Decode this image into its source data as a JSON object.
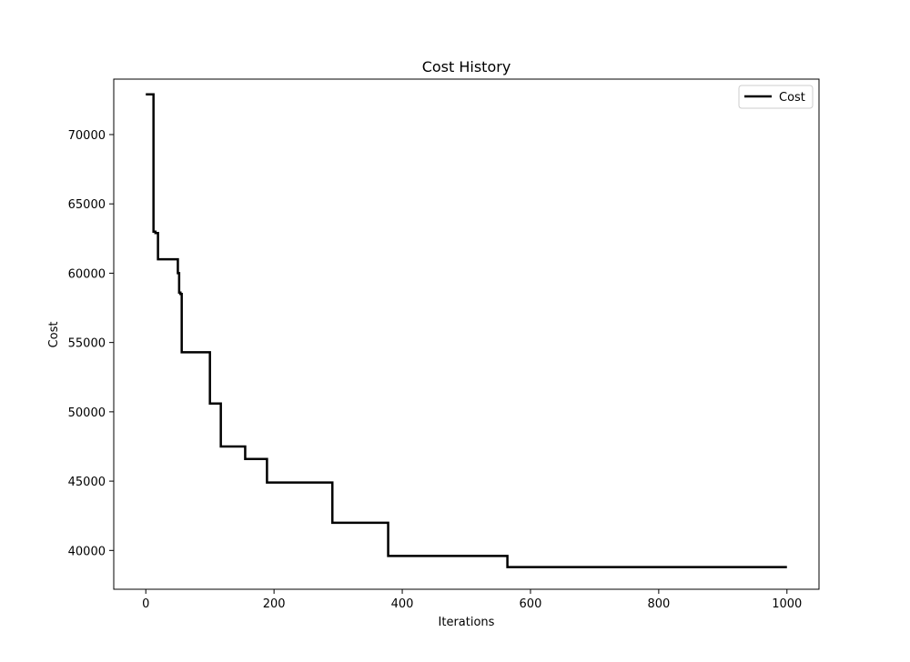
{
  "chart_data": {
    "type": "line",
    "title": "Cost History",
    "xlabel": "Iterations",
    "ylabel": "Cost",
    "xlim": [
      -50,
      1050
    ],
    "ylim": [
      37200,
      74000
    ],
    "xticks": [
      0,
      200,
      400,
      600,
      800,
      1000
    ],
    "yticks": [
      40000,
      45000,
      50000,
      55000,
      60000,
      65000,
      70000
    ],
    "grid": false,
    "legend_position": "top-right",
    "series": [
      {
        "name": "Cost",
        "color": "#000000",
        "step": "post",
        "x": [
          0,
          12,
          15,
          19,
          50,
          52,
          54,
          56,
          100,
          117,
          155,
          189,
          291,
          378,
          564,
          1000
        ],
        "y": [
          72900,
          63000,
          62900,
          61000,
          60000,
          58600,
          58500,
          54300,
          50600,
          47500,
          46600,
          44900,
          42000,
          39600,
          38800,
          38800
        ]
      }
    ]
  }
}
